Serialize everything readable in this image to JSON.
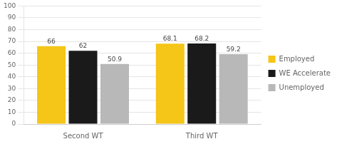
{
  "chart_data": {
    "type": "bar",
    "categories": [
      "Second WT",
      "Third WT"
    ],
    "series": [
      {
        "name": "Employed",
        "color": "#F5C518",
        "values": [
          66,
          68.1
        ]
      },
      {
        "name": "WE Accelerate",
        "color": "#1a1a1a",
        "values": [
          62,
          68.2
        ]
      },
      {
        "name": "Unemployed",
        "color": "#b8b8b8",
        "values": [
          50.9,
          59.2
        ]
      }
    ],
    "ylim": [
      0,
      100
    ],
    "yticks": [
      0,
      10,
      20,
      30,
      40,
      50,
      60,
      70,
      80,
      90,
      100
    ],
    "grid": true,
    "legend": "right",
    "data_labels": true
  }
}
